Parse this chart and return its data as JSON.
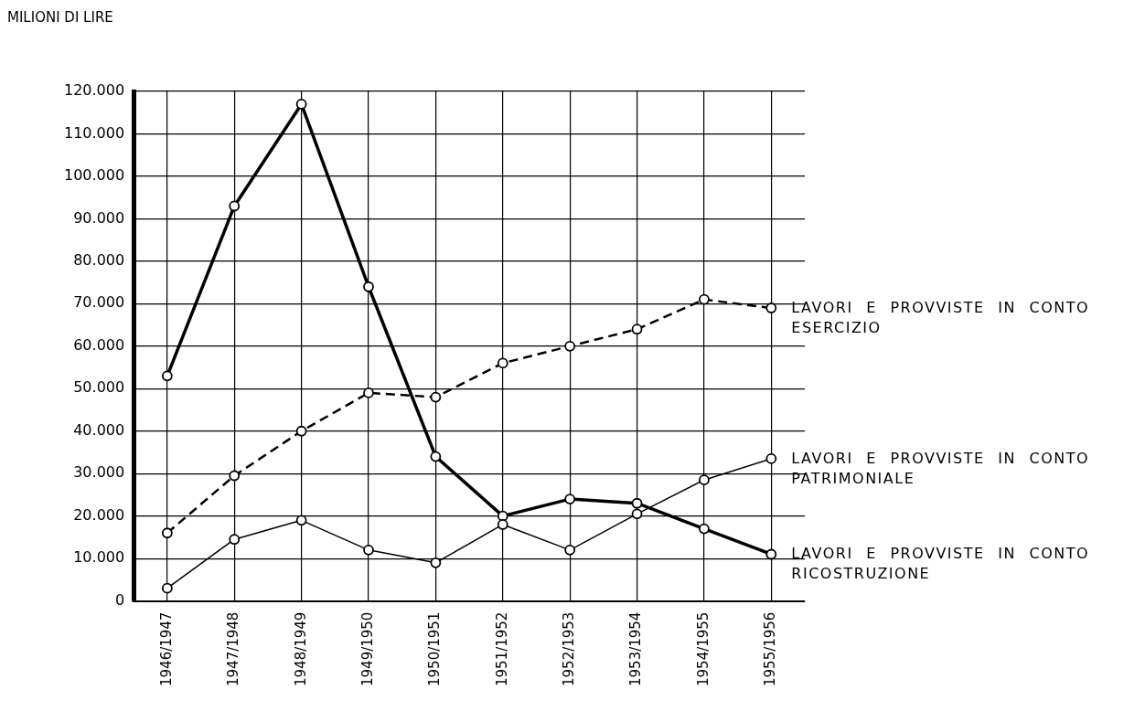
{
  "chart_data": {
    "type": "line",
    "ylabel": "MILIONI DI LIRE",
    "categories": [
      "1946/1947",
      "1947/1948",
      "1948/1949",
      "1949/1950",
      "1950/1951",
      "1951/1952",
      "1952/1953",
      "1953/1954",
      "1954/1955",
      "1955/1956"
    ],
    "series": [
      {
        "name": "LAVORI E PROVVISTE IN CONTO ESERCIZIO",
        "color": "#000000",
        "line_style": "dashed",
        "values": [
          16000,
          29500,
          40000,
          49000,
          48000,
          56000,
          60000,
          64000,
          71000,
          69000
        ]
      },
      {
        "name": "LAVORI E PROVVISTE IN CONTO PATRIMONIALE",
        "color": "#000000",
        "line_style": "solid",
        "values": [
          3000,
          14500,
          19000,
          12000,
          9000,
          18000,
          12000,
          20500,
          28500,
          33500
        ]
      },
      {
        "name": "LAVORI E PROVVISTE IN CONTO RICOSTRUZIONE",
        "color": "#000000",
        "line_style": "solid",
        "values": [
          53000,
          93000,
          117000,
          74000,
          34000,
          20000,
          24000,
          23000,
          17000,
          11000
        ]
      }
    ],
    "ylim": [
      0,
      120000
    ],
    "yticks": [
      {
        "value": 0,
        "label": "0"
      },
      {
        "value": 10000,
        "label": "10.000"
      },
      {
        "value": 20000,
        "label": "20.000"
      },
      {
        "value": 30000,
        "label": "30.000"
      },
      {
        "value": 40000,
        "label": "40.000"
      },
      {
        "value": 50000,
        "label": "50.000"
      },
      {
        "value": 60000,
        "label": "60.000"
      },
      {
        "value": 70000,
        "label": "70.000"
      },
      {
        "value": 80000,
        "label": "80.000"
      },
      {
        "value": 90000,
        "label": "90.000"
      },
      {
        "value": 100000,
        "label": "100.000"
      },
      {
        "value": 110000,
        "label": "110.000"
      },
      {
        "value": 120000,
        "label": "120.000"
      }
    ],
    "grid": true,
    "legend": false,
    "marker": "circle"
  }
}
